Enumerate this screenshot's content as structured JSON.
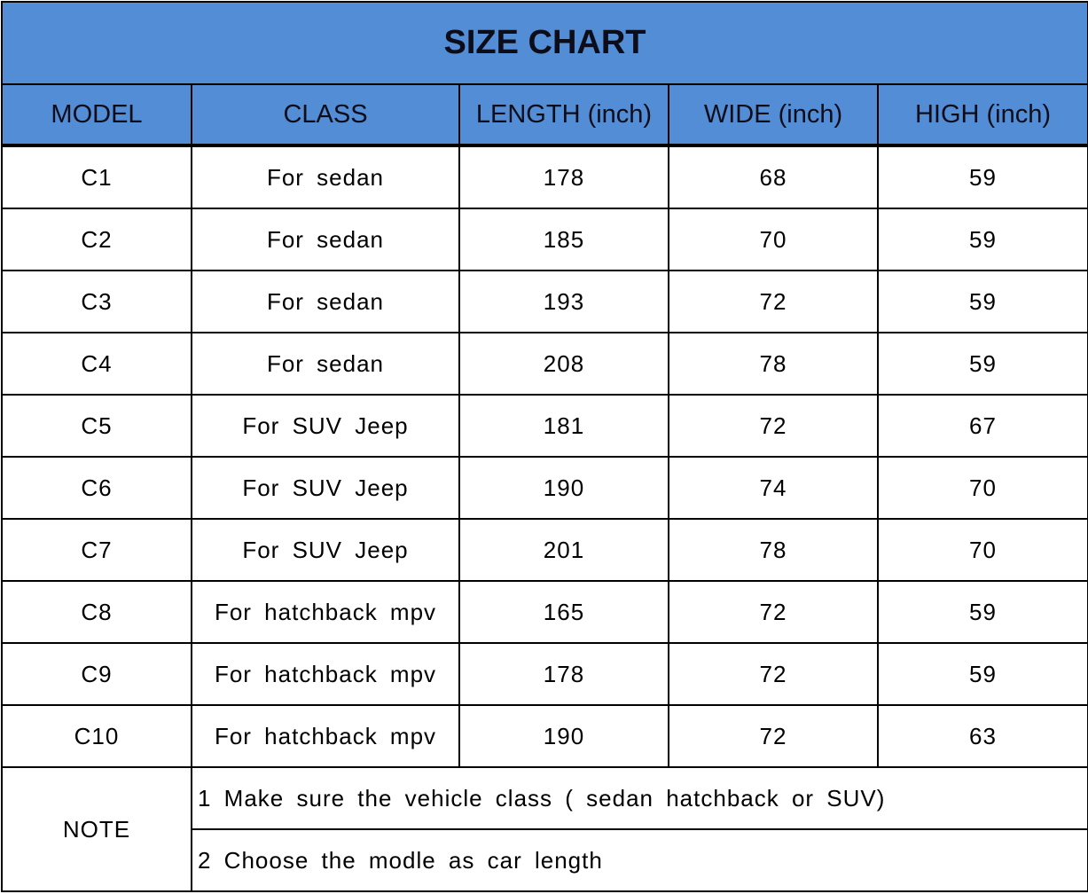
{
  "title": "SIZE CHART",
  "header_color": "#538dd5",
  "columns": [
    "MODEL",
    "CLASS",
    "LENGTH (inch)",
    "WIDE (inch)",
    "HIGH (inch)"
  ],
  "rows": [
    [
      "C1",
      "For sedan",
      "178",
      "68",
      "59"
    ],
    [
      "C2",
      "For sedan",
      "185",
      "70",
      "59"
    ],
    [
      "C3",
      "For sedan",
      "193",
      "72",
      "59"
    ],
    [
      "C4",
      "For sedan",
      "208",
      "78",
      "59"
    ],
    [
      "C5",
      "For SUV Jeep",
      "181",
      "72",
      "67"
    ],
    [
      "C6",
      "For SUV Jeep",
      "190",
      "74",
      "70"
    ],
    [
      "C7",
      "For SUV Jeep",
      "201",
      "78",
      "70"
    ],
    [
      "C8",
      "For hatchback mpv",
      "165",
      "72",
      "59"
    ],
    [
      "C9",
      "For hatchback mpv",
      "178",
      "72",
      "59"
    ],
    [
      "C10",
      "For hatchback mpv",
      "190",
      "72",
      "63"
    ]
  ],
  "note": {
    "label": "NOTE",
    "lines": [
      "1 Make sure the vehicle class ( sedan hatchback or SUV)",
      "2 Choose the modle as car length"
    ]
  }
}
